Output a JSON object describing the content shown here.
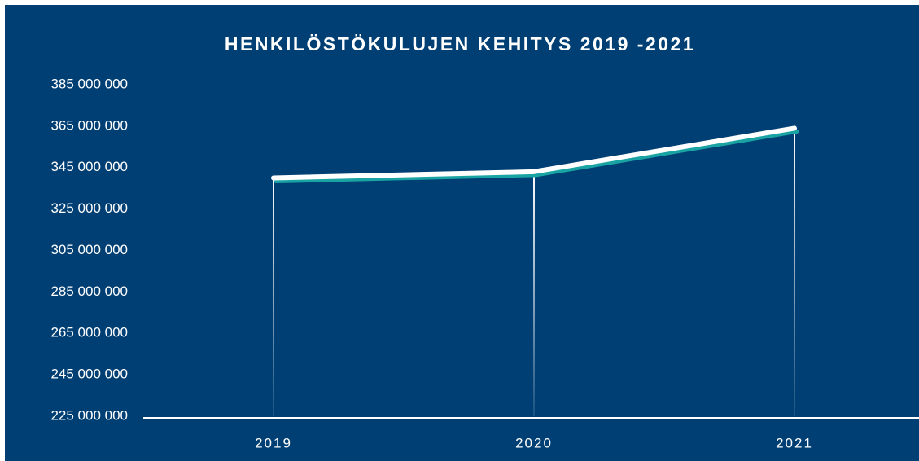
{
  "chart_data": {
    "type": "line",
    "title": "HENKILÖSTÖKULUJEN KEHITYS 2019 -2021",
    "categories": [
      "2019",
      "2020",
      "2021"
    ],
    "series": [
      {
        "color": "#ffffff",
        "values": [
          340000000,
          343000000,
          364000000
        ]
      }
    ],
    "ylim": [
      225000000,
      385000000
    ],
    "yticks": [
      {
        "value": 225000000,
        "label": "225 000 000"
      },
      {
        "value": 245000000,
        "label": "245 000 000"
      },
      {
        "value": 265000000,
        "label": "265 000 000"
      },
      {
        "value": 285000000,
        "label": "285 000 000"
      },
      {
        "value": 305000000,
        "label": "305 000 000"
      },
      {
        "value": 325000000,
        "label": "325 000 000"
      },
      {
        "value": 345000000,
        "label": "345 000 000"
      },
      {
        "value": 365000000,
        "label": "365 000 000"
      },
      {
        "value": 385000000,
        "label": "385 000 000"
      }
    ],
    "grid": false
  }
}
